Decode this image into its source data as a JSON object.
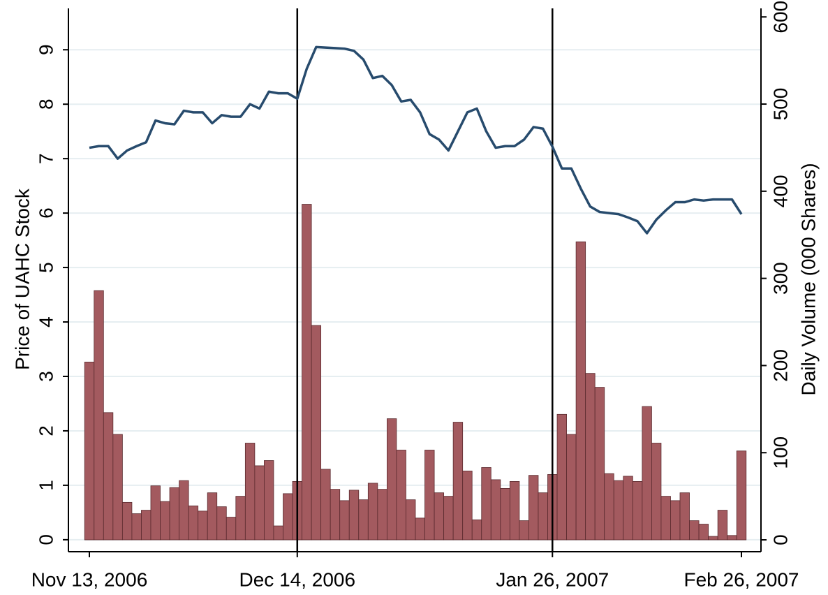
{
  "chart_data": {
    "type": "bar-line",
    "ylabel": "Price of UAHC Stock",
    "y2label": "Daily Volume (000 Shares)",
    "categories": [
      "Nov 13, 2006",
      null,
      null,
      null,
      null,
      null,
      null,
      null,
      null,
      null,
      null,
      null,
      null,
      null,
      null,
      null,
      null,
      null,
      null,
      null,
      null,
      null,
      "Dec 14, 2006",
      null,
      null,
      null,
      null,
      null,
      null,
      null,
      null,
      null,
      null,
      null,
      null,
      null,
      null,
      null,
      null,
      null,
      null,
      null,
      null,
      null,
      null,
      null,
      null,
      null,
      null,
      "Jan 26, 2007",
      null,
      null,
      null,
      null,
      null,
      null,
      null,
      null,
      null,
      null,
      null,
      null,
      null,
      null,
      null,
      null,
      null,
      null,
      null,
      "Feb 26, 2007"
    ],
    "vlines": [
      "Dec 14, 2006",
      "Jan 26, 2007"
    ],
    "series": [
      {
        "type": "bar",
        "axis": "y2",
        "color": "#a35a5f",
        "values": [
          204,
          286,
          146,
          121,
          43,
          30,
          34,
          62,
          44,
          60,
          68,
          39,
          33,
          54,
          38,
          26,
          50,
          111,
          85,
          91,
          16,
          53,
          67,
          385,
          246,
          81,
          58,
          45,
          57,
          46,
          65,
          58,
          139,
          103,
          46,
          25,
          103,
          54,
          50,
          135,
          79,
          23,
          83,
          69,
          59,
          67,
          22,
          74,
          54,
          75,
          144,
          121,
          342,
          191,
          175,
          76,
          68,
          73,
          67,
          153,
          111,
          50,
          45,
          54,
          22,
          18,
          4,
          34,
          5,
          102
        ]
      },
      {
        "type": "line",
        "axis": "y",
        "color": "#274b6d",
        "values": [
          7.2,
          7.23,
          7.23,
          7.0,
          7.15,
          7.23,
          7.3,
          7.7,
          7.65,
          7.63,
          7.88,
          7.85,
          7.85,
          7.65,
          7.8,
          7.77,
          7.77,
          8.0,
          7.92,
          8.23,
          8.2,
          8.2,
          8.1,
          8.65,
          9.05,
          9.04,
          9.03,
          9.02,
          8.98,
          8.82,
          8.48,
          8.52,
          8.35,
          8.05,
          8.08,
          7.85,
          7.45,
          7.35,
          7.15,
          7.5,
          7.85,
          7.92,
          7.5,
          7.2,
          7.23,
          7.23,
          7.35,
          7.58,
          7.55,
          7.22,
          6.82,
          6.82,
          6.45,
          6.12,
          6.02,
          6.0,
          5.98,
          5.92,
          5.85,
          5.63,
          5.88,
          6.05,
          6.2,
          6.2,
          6.25,
          6.23,
          6.25,
          6.25,
          6.25,
          5.98
        ]
      }
    ],
    "ylim": [
      -0.22,
      9.76
    ],
    "yticks": [
      0,
      1,
      2,
      3,
      4,
      5,
      6,
      7,
      8,
      9
    ],
    "y2lim": [
      -13.6,
      609.8
    ],
    "y2ticks": [
      0,
      100,
      200,
      300,
      400,
      500,
      600
    ],
    "grid": true
  }
}
